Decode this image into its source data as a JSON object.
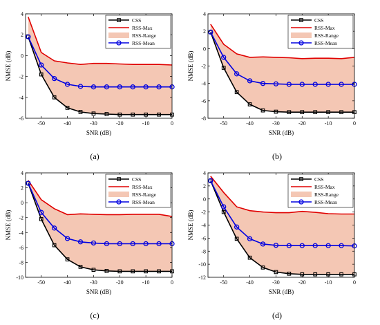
{
  "chart_data": [
    {
      "panel_label": "(a)",
      "type": "line",
      "xlabel": "SNR (dB)",
      "ylabel": "NMSE (dB)",
      "xlim": [
        -56,
        0
      ],
      "ylim": [
        -6,
        4
      ],
      "xticks": [
        -50,
        -40,
        -30,
        -20,
        -10,
        0
      ],
      "yticks": [
        -6,
        -4,
        -2,
        0,
        2,
        4
      ],
      "x": [
        -55,
        -50,
        -45,
        -40,
        -35,
        -30,
        -25,
        -20,
        -15,
        -10,
        -5,
        0
      ],
      "series": [
        {
          "name": "CSS",
          "color": "#000000",
          "marker": "square",
          "values": [
            1.8,
            -1.8,
            -4.0,
            -5.0,
            -5.4,
            -5.55,
            -5.6,
            -5.65,
            -5.65,
            -5.65,
            -5.65,
            -5.65
          ]
        },
        {
          "name": "RSS-Max",
          "color": "#e00000",
          "marker": "none",
          "values": [
            3.7,
            0.3,
            -0.5,
            -0.7,
            -0.85,
            -0.75,
            -0.75,
            -0.8,
            -0.85,
            -0.85,
            -0.85,
            -0.9
          ]
        },
        {
          "name": "RSS-Mean",
          "color": "#0000e0",
          "marker": "circle",
          "values": [
            1.8,
            -0.9,
            -2.2,
            -2.75,
            -2.95,
            -3.0,
            -3.0,
            -3.0,
            -3.0,
            -3.0,
            -3.0,
            -3.0
          ]
        }
      ],
      "range": {
        "name": "RSS-Range",
        "color": "#f4c7b4",
        "upper": [
          3.7,
          0.3,
          -0.5,
          -0.7,
          -0.85,
          -0.75,
          -0.75,
          -0.8,
          -0.85,
          -0.85,
          -0.85,
          -0.9
        ],
        "lower": [
          1.8,
          -1.8,
          -4.0,
          -5.0,
          -5.4,
          -5.55,
          -5.6,
          -5.65,
          -5.65,
          -5.65,
          -5.65,
          -5.65
        ]
      },
      "legend_position": "top-right"
    },
    {
      "panel_label": "(b)",
      "type": "line",
      "xlabel": "SNR (dB)",
      "ylabel": "NMSE (dB)",
      "xlim": [
        -56,
        0
      ],
      "ylim": [
        -8,
        4
      ],
      "xticks": [
        -50,
        -40,
        -30,
        -20,
        -10,
        0
      ],
      "yticks": [
        -8,
        -6,
        -4,
        -2,
        0,
        2,
        4
      ],
      "x": [
        -55,
        -50,
        -45,
        -40,
        -35,
        -30,
        -25,
        -20,
        -15,
        -10,
        -5,
        0
      ],
      "series": [
        {
          "name": "CSS",
          "color": "#000000",
          "marker": "square",
          "values": [
            1.9,
            -2.2,
            -5.0,
            -6.4,
            -7.1,
            -7.25,
            -7.3,
            -7.3,
            -7.3,
            -7.3,
            -7.3,
            -7.3
          ]
        },
        {
          "name": "RSS-Max",
          "color": "#e00000",
          "marker": "none",
          "values": [
            2.8,
            0.5,
            -0.6,
            -1.0,
            -0.95,
            -1.0,
            -1.05,
            -1.15,
            -1.1,
            -1.1,
            -1.15,
            -1.0
          ]
        },
        {
          "name": "RSS-Mean",
          "color": "#0000e0",
          "marker": "circle",
          "values": [
            1.9,
            -1.0,
            -2.9,
            -3.7,
            -4.0,
            -4.05,
            -4.1,
            -4.1,
            -4.1,
            -4.1,
            -4.1,
            -4.1
          ]
        }
      ],
      "range": {
        "name": "RSS-Range",
        "color": "#f4c7b4",
        "upper": [
          2.8,
          0.5,
          -0.6,
          -1.0,
          -0.95,
          -1.0,
          -1.05,
          -1.15,
          -1.1,
          -1.1,
          -1.15,
          -1.0
        ],
        "lower": [
          1.9,
          -2.2,
          -5.0,
          -6.4,
          -7.1,
          -7.25,
          -7.3,
          -7.3,
          -7.3,
          -7.3,
          -7.3,
          -7.3
        ]
      },
      "legend_position": "top-right"
    },
    {
      "panel_label": "(c)",
      "type": "line",
      "xlabel": "SNR (dB)",
      "ylabel": "NMSE (dB)",
      "xlim": [
        -56,
        0
      ],
      "ylim": [
        -10,
        4
      ],
      "xticks": [
        -50,
        -40,
        -30,
        -20,
        -10,
        0
      ],
      "yticks": [
        -10,
        -8,
        -6,
        -4,
        -2,
        0,
        2,
        4
      ],
      "x": [
        -55,
        -50,
        -45,
        -40,
        -35,
        -30,
        -25,
        -20,
        -15,
        -10,
        -5,
        0
      ],
      "series": [
        {
          "name": "CSS",
          "color": "#000000",
          "marker": "square",
          "values": [
            2.6,
            -2.2,
            -5.7,
            -7.6,
            -8.6,
            -9.0,
            -9.15,
            -9.2,
            -9.2,
            -9.2,
            -9.2,
            -9.2
          ]
        },
        {
          "name": "RSS-Max",
          "color": "#e00000",
          "marker": "none",
          "values": [
            3.0,
            0.4,
            -0.8,
            -1.6,
            -1.5,
            -1.55,
            -1.6,
            -1.6,
            -1.55,
            -1.55,
            -1.55,
            -1.85
          ]
        },
        {
          "name": "RSS-Mean",
          "color": "#0000e0",
          "marker": "circle",
          "values": [
            2.6,
            -1.3,
            -3.4,
            -4.8,
            -5.25,
            -5.4,
            -5.5,
            -5.5,
            -5.5,
            -5.5,
            -5.5,
            -5.5
          ]
        }
      ],
      "range": {
        "name": "RSS-Range",
        "color": "#f4c7b4",
        "upper": [
          3.0,
          0.4,
          -0.8,
          -1.6,
          -1.5,
          -1.55,
          -1.6,
          -1.6,
          -1.55,
          -1.55,
          -1.55,
          -1.85
        ],
        "lower": [
          2.6,
          -2.2,
          -5.7,
          -7.6,
          -8.6,
          -9.0,
          -9.15,
          -9.2,
          -9.2,
          -9.2,
          -9.2,
          -9.2
        ]
      },
      "legend_position": "top-right"
    },
    {
      "panel_label": "(d)",
      "type": "line",
      "xlabel": "SNR (dB)",
      "ylabel": "NMSE (dB)",
      "xlim": [
        -56,
        0
      ],
      "ylim": [
        -12,
        4
      ],
      "xticks": [
        -50,
        -40,
        -30,
        -20,
        -10,
        0
      ],
      "yticks": [
        -12,
        -10,
        -8,
        -6,
        -4,
        -2,
        0,
        2,
        4
      ],
      "x": [
        -55,
        -50,
        -45,
        -40,
        -35,
        -30,
        -25,
        -20,
        -15,
        -10,
        -5,
        0
      ],
      "series": [
        {
          "name": "CSS",
          "color": "#000000",
          "marker": "square",
          "values": [
            2.8,
            -2.0,
            -6.1,
            -9.0,
            -10.5,
            -11.2,
            -11.45,
            -11.55,
            -11.55,
            -11.55,
            -11.55,
            -11.55
          ]
        },
        {
          "name": "RSS-Max",
          "color": "#e00000",
          "marker": "none",
          "values": [
            3.5,
            1.0,
            -1.2,
            -1.8,
            -2.0,
            -2.1,
            -2.1,
            -1.9,
            -2.05,
            -2.25,
            -2.3,
            -2.3
          ]
        },
        {
          "name": "RSS-Mean",
          "color": "#0000e0",
          "marker": "circle",
          "values": [
            2.8,
            -1.2,
            -4.3,
            -6.1,
            -6.9,
            -7.1,
            -7.15,
            -7.15,
            -7.15,
            -7.15,
            -7.15,
            -7.2
          ]
        }
      ],
      "range": {
        "name": "RSS-Range",
        "color": "#f4c7b4",
        "upper": [
          3.5,
          1.0,
          -1.2,
          -1.8,
          -2.0,
          -2.1,
          -2.1,
          -1.9,
          -2.05,
          -2.25,
          -2.3,
          -2.3
        ],
        "lower": [
          2.8,
          -2.0,
          -6.1,
          -9.0,
          -10.5,
          -11.2,
          -11.45,
          -11.55,
          -11.55,
          -11.55,
          -11.55,
          -11.55
        ]
      },
      "legend_position": "top-right"
    }
  ]
}
